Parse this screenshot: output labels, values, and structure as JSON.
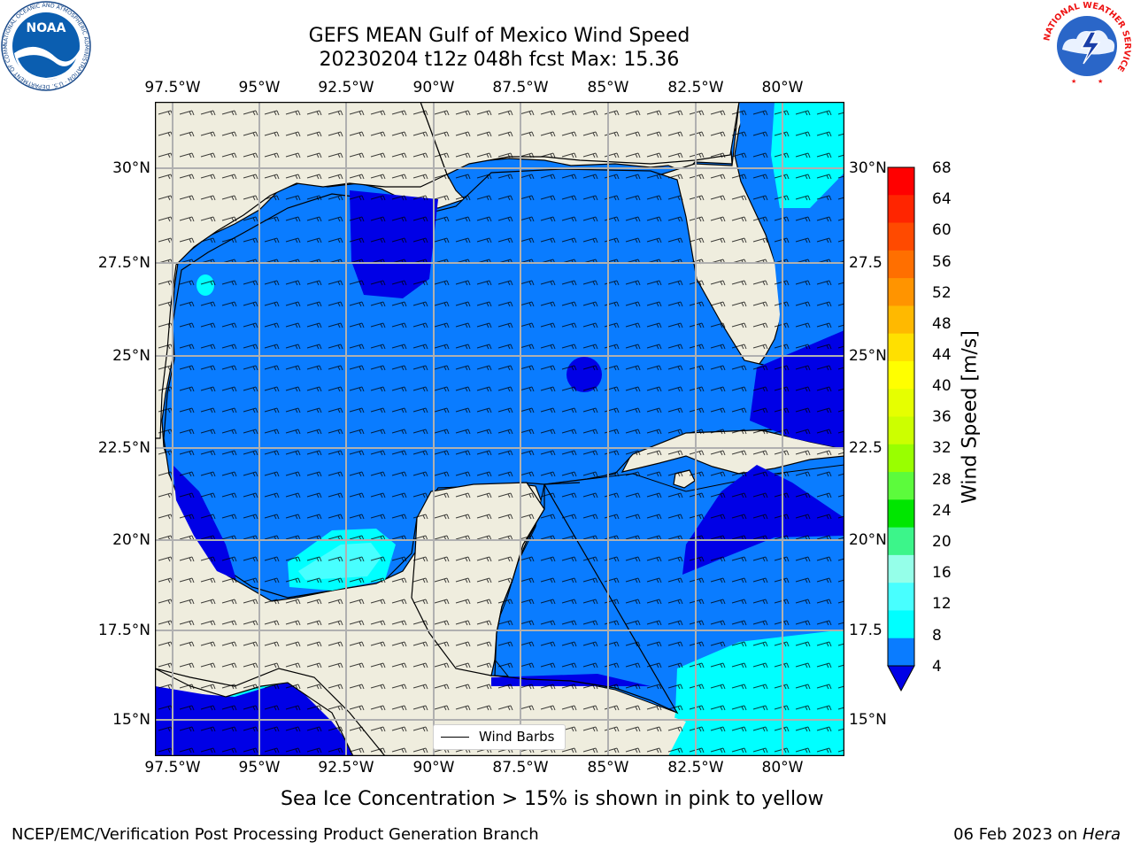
{
  "title": {
    "line1": "GEFS MEAN Gulf of Mexico Wind Speed",
    "line2": "20230204 t12z 048h fcst   Max: 15.36"
  },
  "map": {
    "lon_ticks": [
      "97.5°W",
      "95°W",
      "92.5°W",
      "90°W",
      "87.5°W",
      "85°W",
      "82.5°W",
      "80°W"
    ],
    "lat_ticks": [
      "30°N",
      "27.5°N",
      "25°N",
      "22.5°N",
      "20°N",
      "17.5°N",
      "15°N"
    ],
    "lat_ticks_right": [
      "30°N",
      "27.5",
      "25°N",
      "22.5",
      "20°N",
      "17.5",
      "15°N"
    ],
    "legend_label": "Wind Barbs",
    "colors": {
      "land": "#efedde",
      "ocean_4_8": "#0a7cff",
      "ocean_lt4": "#0000e6",
      "ocean_8_12": "#00ffff",
      "ocean_12_16": "#48ffff",
      "grid": "#b0b0b0"
    }
  },
  "colorbar": {
    "label": "Wind Speed [m/s]",
    "ticks": [
      "68",
      "64",
      "60",
      "56",
      "52",
      "48",
      "44",
      "40",
      "36",
      "32",
      "28",
      "24",
      "20",
      "16",
      "12",
      "8",
      "4"
    ],
    "colors": [
      "#ff0000",
      "#ff2500",
      "#ff4a00",
      "#ff6f00",
      "#ff9400",
      "#ffb900",
      "#ffe000",
      "#ffff00",
      "#e6ff00",
      "#ccff00",
      "#99ff00",
      "#5cfb3c",
      "#00e600",
      "#3cf58a",
      "#95ffe9",
      "#48ffff",
      "#00ffff",
      "#0a7cff",
      "#0000e6"
    ]
  },
  "footnote": "Sea Ice Concentration > 15% is shown in pink to yellow",
  "credit_left": "NCEP/EMC/Verification Post Processing Product Generation Branch",
  "credit_right_date": "06 Feb 2023 on ",
  "credit_right_host": "Hera",
  "logos": {
    "noaa": {
      "text": "NOAA",
      "ring_text": "NATIONAL OCEANIC AND ATMOSPHERIC ADMINISTRATION · U.S. DEPARTMENT OF COMMERCE"
    },
    "nws": {
      "ring_text": "NATIONAL WEATHER SERVICE"
    }
  }
}
